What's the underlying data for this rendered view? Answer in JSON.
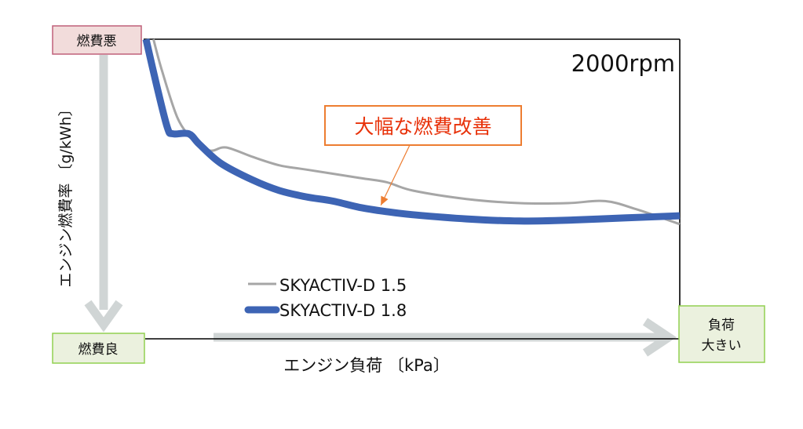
{
  "chart_data": {
    "type": "line",
    "title": "2000rpm",
    "xlabel": "エンジン負荷 〔kPa〕",
    "ylabel": "エンジン燃費率 〔g/kWh〕",
    "x_range": [
      0,
      100
    ],
    "y_range": [
      0,
      100
    ],
    "grid": false,
    "legend_position": "bottom-left",
    "series": [
      {
        "name": "SKYACTIV-D 1.5",
        "color": "#a6a6a6",
        "x": [
          1.4,
          3,
          6,
          9,
          12,
          15,
          20,
          25,
          30,
          40,
          45,
          50,
          60,
          70,
          79,
          86,
          92,
          100
        ],
        "y": [
          100,
          85,
          62,
          52,
          47,
          48.5,
          44,
          40,
          38,
          34,
          32,
          28,
          24,
          22,
          22,
          23,
          19,
          12
        ]
      },
      {
        "name": "SKYACTIV-D 1.8",
        "color": "#3d64b4",
        "x": [
          0,
          2,
          4,
          5,
          8,
          10,
          14,
          20,
          25,
          30,
          35,
          40,
          45,
          50,
          60,
          70,
          80,
          90,
          100
        ],
        "y": [
          100,
          78,
          58,
          55,
          55,
          50,
          41,
          33,
          28,
          25,
          23,
          20,
          18,
          16.5,
          14.5,
          13.5,
          14,
          15,
          16
        ]
      }
    ],
    "annotation": {
      "text": "大幅な燃費改善",
      "target_x": 44,
      "target_y": 21
    },
    "y_axis_top_label": "燃費悪",
    "y_axis_bottom_label": "燃費良",
    "x_axis_right_label_line1": "負荷",
    "x_axis_right_label_line2": "大きい"
  },
  "colors": {
    "frame": "#000000",
    "axis_arrow": "#d0d5d5",
    "worse_box_fill": "#f2dcdb",
    "worse_box_border": "#c0607a",
    "better_box_fill": "#ebf1de",
    "better_box_border": "#92d050",
    "callout_border": "#ed7d31",
    "callout_text": "#e8320a"
  }
}
